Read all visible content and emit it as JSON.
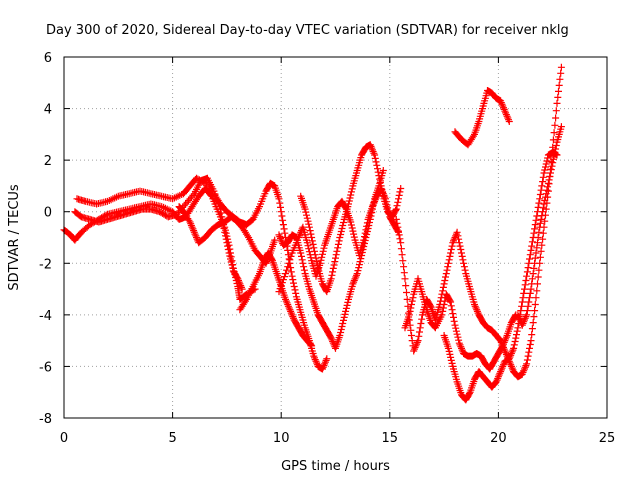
{
  "chart_data": {
    "type": "scatter",
    "title": "Day 300 of 2020, Sidereal Day-to-day VTEC variation (SDTVAR) for receiver nklg",
    "xlabel": "GPS time / hours",
    "ylabel": "SDTVAR / TECUs",
    "xlim": [
      0,
      25
    ],
    "ylim": [
      -8,
      6
    ],
    "xticks": [
      "0",
      "5",
      "10",
      "15",
      "20",
      "25"
    ],
    "yticks": [
      "-8",
      "-6",
      "-4",
      "-2",
      "0",
      "2",
      "4",
      "6"
    ],
    "grid": true,
    "marker": "+",
    "color": "#ff0000",
    "series": [
      {
        "points": [
          [
            0.0,
            -0.7
          ],
          [
            0.3,
            -0.9
          ],
          [
            0.5,
            -1.1
          ],
          [
            0.8,
            -0.8
          ],
          [
            1.2,
            -0.5
          ],
          [
            1.6,
            -0.3
          ],
          [
            2.0,
            -0.1
          ],
          [
            2.5,
            0.0
          ],
          [
            3.0,
            0.1
          ],
          [
            3.5,
            0.2
          ],
          [
            4.0,
            0.3
          ],
          [
            4.5,
            0.2
          ],
          [
            5.0,
            0.0
          ],
          [
            5.3,
            -0.3
          ],
          [
            5.6,
            -0.2
          ],
          [
            5.9,
            0.2
          ],
          [
            6.2,
            0.6
          ],
          [
            6.5,
            0.9
          ],
          [
            6.8,
            0.6
          ],
          [
            7.1,
            0.0
          ],
          [
            7.4,
            -0.6
          ],
          [
            7.6,
            -1.3
          ],
          [
            7.8,
            -2.2
          ],
          [
            8.0,
            -2.9
          ],
          [
            8.1,
            -3.4
          ],
          [
            8.4,
            -3.2
          ],
          [
            8.8,
            -3.0
          ]
        ]
      },
      {
        "points": [
          [
            0.6,
            0.5
          ],
          [
            1.0,
            0.4
          ],
          [
            1.5,
            0.3
          ],
          [
            2.0,
            0.4
          ],
          [
            2.5,
            0.6
          ],
          [
            3.0,
            0.7
          ],
          [
            3.5,
            0.8
          ],
          [
            4.0,
            0.7
          ],
          [
            4.5,
            0.6
          ],
          [
            5.0,
            0.5
          ],
          [
            5.5,
            0.7
          ],
          [
            5.8,
            1.0
          ],
          [
            6.1,
            1.3
          ],
          [
            6.5,
            1.1
          ],
          [
            6.9,
            0.7
          ],
          [
            7.2,
            0.3
          ],
          [
            7.5,
            0.0
          ],
          [
            7.8,
            -0.2
          ],
          [
            8.1,
            -0.4
          ],
          [
            8.4,
            -0.5
          ],
          [
            8.7,
            -0.3
          ],
          [
            9.0,
            0.2
          ],
          [
            9.3,
            0.8
          ],
          [
            9.5,
            1.1
          ],
          [
            9.7,
            1.0
          ],
          [
            9.9,
            0.5
          ],
          [
            10.1,
            -0.5
          ],
          [
            10.3,
            -1.5
          ],
          [
            10.5,
            -2.5
          ],
          [
            10.7,
            -3.3
          ],
          [
            10.9,
            -3.9
          ],
          [
            11.1,
            -4.5
          ],
          [
            11.3,
            -5.0
          ],
          [
            11.5,
            -5.6
          ],
          [
            11.7,
            -6.0
          ],
          [
            11.9,
            -6.1
          ],
          [
            12.1,
            -5.7
          ]
        ]
      },
      {
        "points": [
          [
            0.5,
            0.0
          ],
          [
            0.8,
            -0.2
          ],
          [
            1.2,
            -0.3
          ],
          [
            1.6,
            -0.4
          ],
          [
            2.0,
            -0.3
          ],
          [
            2.4,
            -0.2
          ],
          [
            2.8,
            -0.1
          ],
          [
            3.2,
            0.0
          ],
          [
            3.6,
            0.1
          ],
          [
            4.0,
            0.1
          ],
          [
            4.4,
            0.0
          ],
          [
            4.8,
            -0.2
          ],
          [
            5.2,
            -0.1
          ],
          [
            5.6,
            0.3
          ],
          [
            6.0,
            0.7
          ],
          [
            6.3,
            1.2
          ],
          [
            6.6,
            1.3
          ],
          [
            6.9,
            0.8
          ],
          [
            7.2,
            0.1
          ],
          [
            7.4,
            -0.8
          ],
          [
            7.6,
            -1.6
          ],
          [
            7.8,
            -2.3
          ],
          [
            8.0,
            -2.6
          ],
          [
            8.2,
            -3.0
          ]
        ]
      },
      {
        "points": [
          [
            5.3,
            0.2
          ],
          [
            5.5,
            0.0
          ],
          [
            5.8,
            -0.4
          ],
          [
            6.0,
            -0.8
          ],
          [
            6.2,
            -1.2
          ],
          [
            6.5,
            -1.0
          ],
          [
            6.8,
            -0.7
          ],
          [
            7.1,
            -0.5
          ],
          [
            7.4,
            -0.4
          ],
          [
            7.7,
            -0.2
          ],
          [
            8.0,
            -0.4
          ],
          [
            8.2,
            -0.6
          ],
          [
            8.5,
            -1.0
          ],
          [
            8.8,
            -1.5
          ],
          [
            9.1,
            -1.8
          ],
          [
            9.3,
            -2.0
          ],
          [
            9.5,
            -1.6
          ],
          [
            9.7,
            -1.1
          ]
        ]
      },
      {
        "points": [
          [
            8.1,
            -3.8
          ],
          [
            8.4,
            -3.4
          ],
          [
            8.7,
            -2.9
          ],
          [
            9.0,
            -2.4
          ],
          [
            9.2,
            -1.9
          ],
          [
            9.4,
            -1.6
          ],
          [
            9.6,
            -1.9
          ],
          [
            9.8,
            -2.4
          ],
          [
            10.0,
            -2.9
          ],
          [
            10.2,
            -3.4
          ],
          [
            10.4,
            -3.8
          ],
          [
            10.6,
            -4.2
          ],
          [
            10.8,
            -4.5
          ],
          [
            11.0,
            -4.8
          ],
          [
            11.2,
            -5.0
          ],
          [
            11.4,
            -5.2
          ]
        ]
      },
      {
        "points": [
          [
            9.9,
            -3.1
          ],
          [
            10.2,
            -2.4
          ],
          [
            10.5,
            -1.6
          ],
          [
            10.8,
            -1.0
          ],
          [
            11.0,
            -0.6
          ],
          [
            11.2,
            -1.2
          ],
          [
            11.4,
            -1.9
          ],
          [
            11.6,
            -2.5
          ],
          [
            11.8,
            -2.0
          ],
          [
            12.0,
            -1.3
          ],
          [
            12.2,
            -0.8
          ],
          [
            12.4,
            -0.3
          ],
          [
            12.6,
            0.2
          ],
          [
            12.8,
            0.4
          ],
          [
            13.0,
            0.1
          ],
          [
            13.2,
            -0.4
          ],
          [
            13.4,
            -1.1
          ],
          [
            13.6,
            -1.7
          ],
          [
            13.8,
            -1.1
          ],
          [
            14.0,
            -0.3
          ],
          [
            14.2,
            0.2
          ],
          [
            14.4,
            0.6
          ],
          [
            14.6,
            0.9
          ],
          [
            14.8,
            0.5
          ],
          [
            15.0,
            -0.2
          ],
          [
            15.2,
            -0.5
          ],
          [
            15.4,
            -0.8
          ]
        ]
      },
      {
        "points": [
          [
            10.9,
            0.6
          ],
          [
            11.1,
            0.1
          ],
          [
            11.3,
            -0.6
          ],
          [
            11.5,
            -1.4
          ],
          [
            11.7,
            -2.2
          ],
          [
            11.9,
            -2.8
          ],
          [
            12.1,
            -3.1
          ],
          [
            12.3,
            -2.6
          ],
          [
            12.5,
            -1.8
          ],
          [
            12.7,
            -1.0
          ],
          [
            12.9,
            -0.3
          ],
          [
            13.1,
            0.3
          ],
          [
            13.3,
            1.0
          ],
          [
            13.5,
            1.6
          ],
          [
            13.7,
            2.2
          ],
          [
            13.9,
            2.5
          ],
          [
            14.1,
            2.6
          ],
          [
            14.3,
            2.2
          ],
          [
            14.5,
            1.4
          ],
          [
            14.7,
            0.6
          ],
          [
            14.9,
            0.0
          ],
          [
            15.1,
            -0.2
          ],
          [
            15.3,
            0.1
          ],
          [
            15.5,
            0.9
          ]
        ]
      },
      {
        "points": [
          [
            9.9,
            -0.9
          ],
          [
            10.1,
            -1.3
          ],
          [
            10.3,
            -1.2
          ],
          [
            10.5,
            -0.9
          ],
          [
            10.7,
            -1.0
          ],
          [
            10.9,
            -1.6
          ],
          [
            11.1,
            -2.4
          ],
          [
            11.3,
            -3.0
          ],
          [
            11.5,
            -3.5
          ],
          [
            11.7,
            -4.0
          ],
          [
            11.9,
            -4.3
          ],
          [
            12.1,
            -4.6
          ],
          [
            12.3,
            -4.9
          ],
          [
            12.5,
            -5.3
          ],
          [
            12.7,
            -4.8
          ],
          [
            12.9,
            -4.1
          ],
          [
            13.1,
            -3.4
          ],
          [
            13.3,
            -2.8
          ],
          [
            13.5,
            -2.4
          ],
          [
            13.7,
            -1.7
          ],
          [
            13.9,
            -1.0
          ],
          [
            14.1,
            -0.3
          ],
          [
            14.3,
            0.5
          ],
          [
            14.5,
            1.0
          ],
          [
            14.7,
            1.6
          ]
        ]
      },
      {
        "points": [
          [
            15.3,
            -0.3
          ],
          [
            15.5,
            -1.2
          ],
          [
            15.7,
            -2.6
          ],
          [
            15.9,
            -4.2
          ],
          [
            16.1,
            -5.4
          ],
          [
            16.3,
            -5.0
          ],
          [
            16.5,
            -4.0
          ],
          [
            16.7,
            -3.4
          ],
          [
            16.9,
            -3.7
          ],
          [
            17.1,
            -4.2
          ],
          [
            17.3,
            -3.6
          ],
          [
            17.5,
            -2.8
          ],
          [
            17.7,
            -2.0
          ],
          [
            17.9,
            -1.2
          ],
          [
            18.1,
            -0.8
          ],
          [
            18.3,
            -1.6
          ],
          [
            18.5,
            -2.4
          ],
          [
            18.7,
            -3.0
          ],
          [
            18.9,
            -3.6
          ],
          [
            19.1,
            -4.0
          ],
          [
            19.3,
            -4.3
          ],
          [
            19.5,
            -4.5
          ],
          [
            19.7,
            -4.6
          ],
          [
            19.9,
            -4.8
          ],
          [
            20.1,
            -5.0
          ],
          [
            20.3,
            -5.4
          ],
          [
            20.5,
            -5.8
          ],
          [
            20.7,
            -6.2
          ],
          [
            20.9,
            -6.4
          ],
          [
            21.1,
            -6.3
          ],
          [
            21.3,
            -5.9
          ],
          [
            21.5,
            -5.0
          ],
          [
            21.7,
            -3.6
          ],
          [
            21.9,
            -2.0
          ],
          [
            22.1,
            -0.6
          ],
          [
            22.3,
            0.8
          ],
          [
            22.5,
            2.5
          ],
          [
            22.7,
            4.2
          ],
          [
            22.9,
            5.6
          ]
        ]
      },
      {
        "points": [
          [
            15.7,
            -4.5
          ],
          [
            15.9,
            -4.0
          ],
          [
            16.1,
            -3.2
          ],
          [
            16.3,
            -2.6
          ],
          [
            16.5,
            -3.2
          ],
          [
            16.7,
            -3.8
          ],
          [
            16.9,
            -4.3
          ],
          [
            17.1,
            -4.5
          ],
          [
            17.4,
            -4.0
          ],
          [
            17.6,
            -3.2
          ],
          [
            17.8,
            -3.5
          ],
          [
            18.0,
            -4.4
          ],
          [
            18.2,
            -5.1
          ],
          [
            18.4,
            -5.5
          ],
          [
            18.6,
            -5.6
          ],
          [
            18.8,
            -5.6
          ],
          [
            19.0,
            -5.5
          ],
          [
            19.2,
            -5.6
          ],
          [
            19.4,
            -5.9
          ],
          [
            19.6,
            -6.1
          ],
          [
            19.8,
            -5.8
          ],
          [
            20.0,
            -5.5
          ],
          [
            20.2,
            -5.2
          ],
          [
            20.4,
            -4.8
          ],
          [
            20.6,
            -4.3
          ],
          [
            20.8,
            -4.0
          ]
        ]
      },
      {
        "points": [
          [
            17.5,
            -4.8
          ],
          [
            17.7,
            -5.3
          ],
          [
            17.9,
            -6.0
          ],
          [
            18.1,
            -6.6
          ],
          [
            18.3,
            -7.1
          ],
          [
            18.5,
            -7.3
          ],
          [
            18.7,
            -7.0
          ],
          [
            18.9,
            -6.5
          ],
          [
            19.1,
            -6.2
          ],
          [
            19.3,
            -6.4
          ],
          [
            19.5,
            -6.6
          ],
          [
            19.7,
            -6.8
          ],
          [
            19.9,
            -6.6
          ],
          [
            20.1,
            -6.2
          ],
          [
            20.3,
            -5.8
          ],
          [
            20.5,
            -5.7
          ],
          [
            20.7,
            -5.3
          ],
          [
            20.9,
            -4.5
          ],
          [
            21.1,
            -3.5
          ],
          [
            21.3,
            -2.5
          ],
          [
            21.5,
            -1.5
          ],
          [
            21.7,
            -0.5
          ],
          [
            21.9,
            0.5
          ],
          [
            22.1,
            1.5
          ],
          [
            22.3,
            2.2
          ],
          [
            22.5,
            2.3
          ],
          [
            22.7,
            2.2
          ]
        ]
      },
      {
        "points": [
          [
            20.9,
            -4.0
          ],
          [
            21.1,
            -4.4
          ],
          [
            21.3,
            -4.0
          ],
          [
            21.5,
            -3.0
          ],
          [
            21.7,
            -1.8
          ],
          [
            21.9,
            -0.6
          ],
          [
            22.1,
            0.3
          ],
          [
            22.3,
            1.1
          ],
          [
            22.5,
            1.9
          ],
          [
            22.7,
            2.7
          ],
          [
            22.9,
            3.3
          ]
        ]
      },
      {
        "points": [
          [
            18.0,
            3.1
          ],
          [
            18.3,
            2.8
          ],
          [
            18.6,
            2.6
          ],
          [
            18.9,
            3.0
          ],
          [
            19.1,
            3.5
          ],
          [
            19.3,
            4.1
          ],
          [
            19.5,
            4.7
          ],
          [
            19.7,
            4.6
          ],
          [
            19.9,
            4.4
          ],
          [
            20.1,
            4.3
          ],
          [
            20.3,
            3.9
          ],
          [
            20.5,
            3.5
          ]
        ]
      }
    ]
  }
}
